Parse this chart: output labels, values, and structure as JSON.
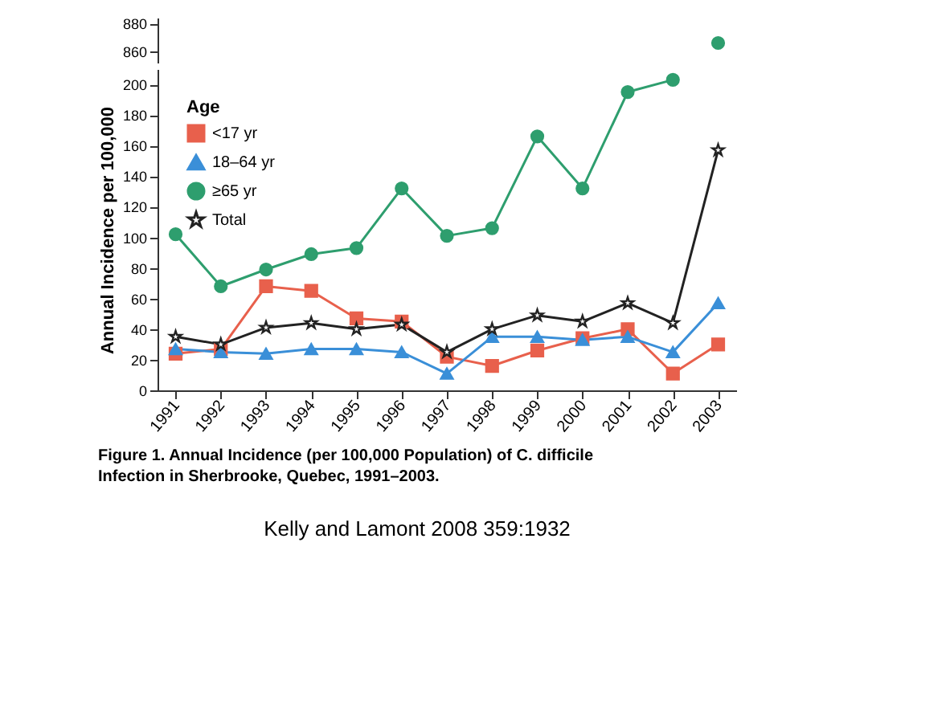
{
  "chart_data": [
    {
      "type": "line",
      "categories": [
        "1991",
        "1992",
        "1993",
        "1994",
        "1995",
        "1996",
        "1997",
        "1998",
        "1999",
        "2000",
        "2001",
        "2002",
        "2003"
      ],
      "ylim": [
        852,
        884
      ],
      "yticks": [
        860,
        880
      ],
      "tick_labels": "y",
      "grid": false,
      "line_style": "solid",
      "legend": false,
      "series": [
        {
          "color": "#2e9e6e",
          "marker": "circle",
          "values": [
            null,
            null,
            null,
            null,
            null,
            null,
            null,
            null,
            null,
            null,
            null,
            null,
            866
          ]
        }
      ]
    },
    {
      "type": "line",
      "categories": [
        "1991",
        "1992",
        "1993",
        "1994",
        "1995",
        "1996",
        "1997",
        "1998",
        "1999",
        "2000",
        "2001",
        "2002",
        "2003"
      ],
      "ylim": [
        0,
        210
      ],
      "yticks": [
        0,
        20,
        40,
        60,
        80,
        100,
        120,
        140,
        160,
        180,
        200
      ],
      "ylabel": "Annual Incidence per 100,000",
      "grid": false,
      "line_style": "solid",
      "legend": "top left",
      "legend_title": "Age",
      "title": "Figure 1. Annual Incidence (per 100,000 Population) of C. difficile Infection in Sherbrooke, Quebec, 1991–2003.",
      "annotations": [
        "Kelly and Lamont 2008 359:1932"
      ],
      "series": [
        {
          "name": "<17 yr",
          "color": "#e8604c",
          "marker": "square",
          "values": [
            24,
            27,
            68,
            65,
            47,
            45,
            22,
            16,
            26,
            34,
            40,
            11,
            30
          ]
        },
        {
          "name": "18–64 yr",
          "color": "#3a8fd8",
          "marker": "triangle",
          "values": [
            27,
            25,
            24,
            27,
            27,
            25,
            11,
            35,
            35,
            33,
            35,
            25,
            57
          ]
        },
        {
          "name": "≥65 yr",
          "color": "#2e9e6e",
          "marker": "circle",
          "values": [
            102,
            68,
            79,
            89,
            93,
            132,
            101,
            106,
            166,
            132,
            195,
            203,
            null
          ]
        },
        {
          "name": "Total",
          "color": "#222222",
          "marker": "star",
          "values": [
            35,
            30,
            41,
            44,
            40,
            43,
            25,
            40,
            49,
            45,
            57,
            44,
            157
          ]
        }
      ]
    }
  ]
}
